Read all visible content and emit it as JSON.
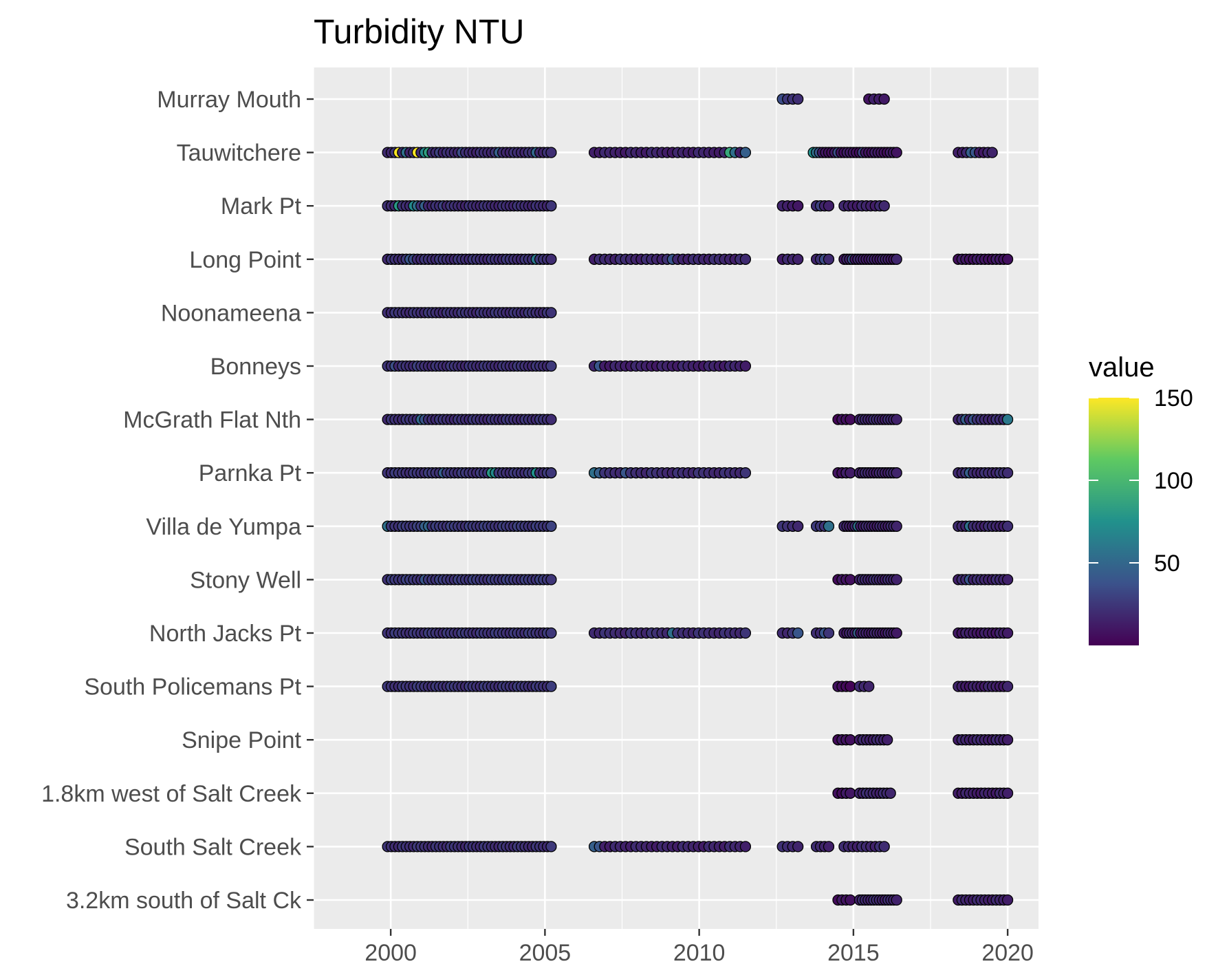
{
  "chart_data": {
    "type": "scatter",
    "title": "Turbidity NTU",
    "xlabel": "",
    "ylabel": "",
    "xlim": [
      1997.5,
      2021.0
    ],
    "x_ticks": [
      2000,
      2005,
      2010,
      2015,
      2020
    ],
    "grid": true,
    "legend": {
      "title": "value",
      "position": "right",
      "min": 0,
      "max": 150,
      "ticks": [
        50,
        100,
        150
      ]
    },
    "colorscale": [
      "#440154",
      "#3b528b",
      "#21918c",
      "#5ec962",
      "#fde725"
    ],
    "sites": [
      {
        "name": "Murray Mouth",
        "segments": [
          {
            "start": 2012.7,
            "end": 2013.2,
            "n": 4,
            "base": 22,
            "hi": [
              [
                0,
                35
              ]
            ]
          },
          {
            "start": 2015.5,
            "end": 2016.0,
            "n": 4,
            "base": 12
          }
        ]
      },
      {
        "name": "Tauwitchere",
        "segments": [
          {
            "start": 1999.9,
            "end": 2005.2,
            "n": 45,
            "base": 20,
            "hi": [
              [
                3,
                150
              ],
              [
                5,
                55
              ],
              [
                8,
                150
              ],
              [
                10,
                70
              ],
              [
                11,
                85
              ],
              [
                14,
                30
              ],
              [
                20,
                35
              ],
              [
                30,
                45
              ],
              [
                40,
                50
              ]
            ]
          },
          {
            "start": 2006.6,
            "end": 2011.5,
            "n": 30,
            "base": 15,
            "hi": [
              [
                26,
                90
              ],
              [
                27,
                55
              ],
              [
                29,
                45
              ]
            ]
          },
          {
            "start": 2013.7,
            "end": 2016.4,
            "n": 28,
            "base": 10,
            "hi": [
              [
                0,
                75
              ],
              [
                1,
                55
              ],
              [
                2,
                40
              ],
              [
                8,
                35
              ],
              [
                16,
                30
              ]
            ]
          },
          {
            "start": 2018.4,
            "end": 2019.5,
            "n": 9,
            "base": 15,
            "hi": [
              [
                3,
                45
              ],
              [
                4,
                40
              ]
            ]
          }
        ]
      },
      {
        "name": "Mark Pt",
        "segments": [
          {
            "start": 1999.9,
            "end": 2005.2,
            "n": 45,
            "base": 20,
            "hi": [
              [
                3,
                80
              ],
              [
                7,
                70
              ],
              [
                8,
                55
              ],
              [
                10,
                45
              ],
              [
                15,
                30
              ]
            ]
          },
          {
            "start": 2012.7,
            "end": 2013.2,
            "n": 4,
            "base": 14
          },
          {
            "start": 2013.8,
            "end": 2014.2,
            "n": 4,
            "base": 18,
            "hi": [
              [
                1,
                30
              ]
            ]
          },
          {
            "start": 2014.7,
            "end": 2016.0,
            "n": 10,
            "base": 16
          }
        ]
      },
      {
        "name": "Long Point",
        "segments": [
          {
            "start": 1999.9,
            "end": 2005.2,
            "n": 45,
            "base": 22,
            "hi": [
              [
                6,
                40
              ],
              [
                7,
                35
              ],
              [
                40,
                60
              ]
            ]
          },
          {
            "start": 2006.6,
            "end": 2011.5,
            "n": 30,
            "base": 18,
            "hi": [
              [
                15,
                40
              ]
            ]
          },
          {
            "start": 2012.7,
            "end": 2013.2,
            "n": 4,
            "base": 16
          },
          {
            "start": 2013.8,
            "end": 2014.2,
            "n": 4,
            "base": 20,
            "hi": [
              [
                2,
                35
              ]
            ]
          },
          {
            "start": 2014.7,
            "end": 2016.4,
            "n": 20,
            "base": 14,
            "hi": [
              [
                3,
                35
              ]
            ]
          },
          {
            "start": 2018.4,
            "end": 2020.0,
            "n": 14,
            "base": 10
          }
        ]
      },
      {
        "name": "Noonameena",
        "segments": [
          {
            "start": 1999.9,
            "end": 2005.2,
            "n": 45,
            "base": 22
          }
        ]
      },
      {
        "name": "Bonneys",
        "segments": [
          {
            "start": 1999.9,
            "end": 2005.2,
            "n": 45,
            "base": 22,
            "hi": [
              [
                2,
                35
              ],
              [
                8,
                30
              ]
            ]
          },
          {
            "start": 2006.6,
            "end": 2011.5,
            "n": 30,
            "base": 15,
            "hi": [
              [
                1,
                40
              ]
            ]
          }
        ]
      },
      {
        "name": "McGrath Flat Nth",
        "segments": [
          {
            "start": 1999.9,
            "end": 2005.2,
            "n": 45,
            "base": 22,
            "hi": [
              [
                9,
                50
              ],
              [
                10,
                40
              ]
            ]
          },
          {
            "start": 2014.5,
            "end": 2014.9,
            "n": 4,
            "base": 6
          },
          {
            "start": 2015.2,
            "end": 2016.4,
            "n": 14,
            "base": 18
          },
          {
            "start": 2018.4,
            "end": 2020.0,
            "n": 14,
            "base": 20,
            "hi": [
              [
                2,
                45
              ],
              [
                4,
                40
              ],
              [
                13,
                60
              ]
            ]
          }
        ]
      },
      {
        "name": "Parnka Pt",
        "segments": [
          {
            "start": 1999.9,
            "end": 2005.2,
            "n": 45,
            "base": 24,
            "hi": [
              [
                28,
                80
              ],
              [
                29,
                70
              ],
              [
                40,
                75
              ],
              [
                15,
                45
              ]
            ]
          },
          {
            "start": 2006.6,
            "end": 2011.5,
            "n": 30,
            "base": 20,
            "hi": [
              [
                0,
                55
              ],
              [
                1,
                45
              ],
              [
                6,
                40
              ]
            ]
          },
          {
            "start": 2014.5,
            "end": 2014.9,
            "n": 4,
            "base": 10
          },
          {
            "start": 2015.2,
            "end": 2016.4,
            "n": 14,
            "base": 16
          },
          {
            "start": 2018.4,
            "end": 2020.0,
            "n": 14,
            "base": 20,
            "hi": [
              [
                3,
                45
              ]
            ]
          }
        ]
      },
      {
        "name": "Villa de Yumpa",
        "segments": [
          {
            "start": 1999.9,
            "end": 2005.2,
            "n": 45,
            "base": 26,
            "hi": [
              [
                0,
                55
              ],
              [
                10,
                45
              ],
              [
                11,
                50
              ]
            ]
          },
          {
            "start": 2012.7,
            "end": 2013.2,
            "n": 4,
            "base": 22
          },
          {
            "start": 2013.8,
            "end": 2014.2,
            "n": 4,
            "base": 25,
            "hi": [
              [
                3,
                55
              ]
            ]
          },
          {
            "start": 2014.7,
            "end": 2016.4,
            "n": 20,
            "base": 16,
            "hi": [
              [
                5,
                55
              ]
            ]
          },
          {
            "start": 2018.4,
            "end": 2020.0,
            "n": 14,
            "base": 18,
            "hi": [
              [
                3,
                55
              ]
            ]
          }
        ]
      },
      {
        "name": "Stony Well",
        "segments": [
          {
            "start": 1999.9,
            "end": 2005.2,
            "n": 45,
            "base": 26,
            "hi": [
              [
                10,
                40
              ]
            ]
          },
          {
            "start": 2014.5,
            "end": 2014.9,
            "n": 4,
            "base": 8
          },
          {
            "start": 2015.2,
            "end": 2016.4,
            "n": 14,
            "base": 18
          },
          {
            "start": 2018.4,
            "end": 2020.0,
            "n": 14,
            "base": 18,
            "hi": [
              [
                3,
                40
              ]
            ]
          }
        ]
      },
      {
        "name": "North Jacks Pt",
        "segments": [
          {
            "start": 1999.9,
            "end": 2005.2,
            "n": 45,
            "base": 24
          },
          {
            "start": 2006.6,
            "end": 2011.5,
            "n": 30,
            "base": 20,
            "hi": [
              [
                15,
                55
              ]
            ]
          },
          {
            "start": 2012.7,
            "end": 2013.2,
            "n": 4,
            "base": 20,
            "hi": [
              [
                3,
                40
              ]
            ]
          },
          {
            "start": 2013.8,
            "end": 2014.2,
            "n": 4,
            "base": 22,
            "hi": [
              [
                2,
                40
              ]
            ]
          },
          {
            "start": 2014.7,
            "end": 2016.4,
            "n": 20,
            "base": 14,
            "hi": [
              [
                5,
                45
              ]
            ]
          },
          {
            "start": 2018.4,
            "end": 2020.0,
            "n": 14,
            "base": 12
          }
        ]
      },
      {
        "name": "South Policemans Pt",
        "segments": [
          {
            "start": 1999.9,
            "end": 2005.2,
            "n": 45,
            "base": 24
          },
          {
            "start": 2014.5,
            "end": 2014.9,
            "n": 4,
            "base": 6
          },
          {
            "start": 2015.2,
            "end": 2015.5,
            "n": 3,
            "base": 18
          },
          {
            "start": 2018.4,
            "end": 2020.0,
            "n": 14,
            "base": 14
          }
        ]
      },
      {
        "name": "Snipe Point",
        "segments": [
          {
            "start": 2014.5,
            "end": 2014.9,
            "n": 4,
            "base": 8
          },
          {
            "start": 2015.2,
            "end": 2016.1,
            "n": 9,
            "base": 16
          },
          {
            "start": 2018.4,
            "end": 2020.0,
            "n": 14,
            "base": 16
          }
        ]
      },
      {
        "name": "1.8km west of Salt Creek",
        "segments": [
          {
            "start": 2014.5,
            "end": 2014.9,
            "n": 4,
            "base": 8
          },
          {
            "start": 2015.2,
            "end": 2016.2,
            "n": 10,
            "base": 18
          },
          {
            "start": 2018.4,
            "end": 2020.0,
            "n": 14,
            "base": 14
          }
        ]
      },
      {
        "name": "South Salt Creek",
        "segments": [
          {
            "start": 1999.9,
            "end": 2005.2,
            "n": 45,
            "base": 22
          },
          {
            "start": 2006.6,
            "end": 2011.5,
            "n": 30,
            "base": 16,
            "hi": [
              [
                0,
                45
              ],
              [
                1,
                40
              ]
            ]
          },
          {
            "start": 2012.7,
            "end": 2013.2,
            "n": 4,
            "base": 20
          },
          {
            "start": 2013.8,
            "end": 2014.2,
            "n": 4,
            "base": 18
          },
          {
            "start": 2014.7,
            "end": 2016.0,
            "n": 10,
            "base": 18
          }
        ]
      },
      {
        "name": "3.2km south of Salt Ck",
        "segments": [
          {
            "start": 2014.5,
            "end": 2014.9,
            "n": 4,
            "base": 8
          },
          {
            "start": 2015.2,
            "end": 2016.4,
            "n": 14,
            "base": 18
          },
          {
            "start": 2018.4,
            "end": 2020.0,
            "n": 14,
            "base": 16
          }
        ]
      }
    ]
  }
}
